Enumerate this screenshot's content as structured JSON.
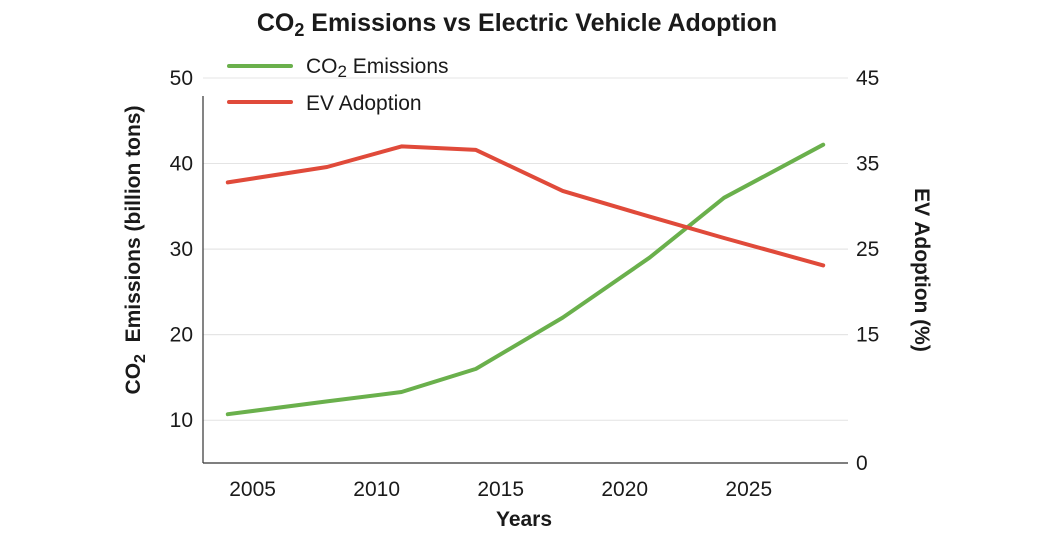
{
  "chart_data": {
    "type": "line",
    "title": {
      "prefix": "CO",
      "subscript": "2",
      "rest": " Emissions vs Electric Vehicle Adoption"
    },
    "xlabel": "Years",
    "ylabel_left": {
      "prefix": "CO",
      "subscript": "2",
      "rest": "  Emissions (billion tons)"
    },
    "ylabel_right": "EV Adoption (%)",
    "x_ticks": [
      "2005",
      "2010",
      "2015",
      "2020",
      "2025"
    ],
    "y_left_ticks": [
      "10",
      "20",
      "30",
      "40",
      "50"
    ],
    "y_right_ticks": [
      "0",
      "15",
      "25",
      "35",
      "45"
    ],
    "y_left_tick_values": [
      10,
      20,
      30,
      40,
      50
    ],
    "y_right_tick_values": [
      0,
      15,
      25,
      35,
      45
    ],
    "xlim": [
      2003,
      2029
    ],
    "y_left_lim": [
      5,
      50
    ],
    "y_right_lim": [
      0,
      45
    ],
    "legend_placement": "top-left",
    "grid": true,
    "series": [
      {
        "name": {
          "prefix": "CO",
          "subscript": "2",
          "rest": " Emissions"
        },
        "color": "#6ab04c",
        "axis": "left",
        "x": [
          2004,
          2008,
          2011,
          2014,
          2017.5,
          2021,
          2024,
          2028
        ],
        "y": [
          10.7,
          12.2,
          13.3,
          16,
          22,
          29,
          36,
          42.2
        ]
      },
      {
        "name": "EV Adoption",
        "color": "#e04a3a",
        "axis": "left",
        "x": [
          2004,
          2008,
          2011,
          2014,
          2017.5,
          2021,
          2024,
          2028
        ],
        "y": [
          37.8,
          39.6,
          42,
          41.6,
          36.8,
          33.8,
          31.3,
          28.1
        ]
      }
    ]
  }
}
